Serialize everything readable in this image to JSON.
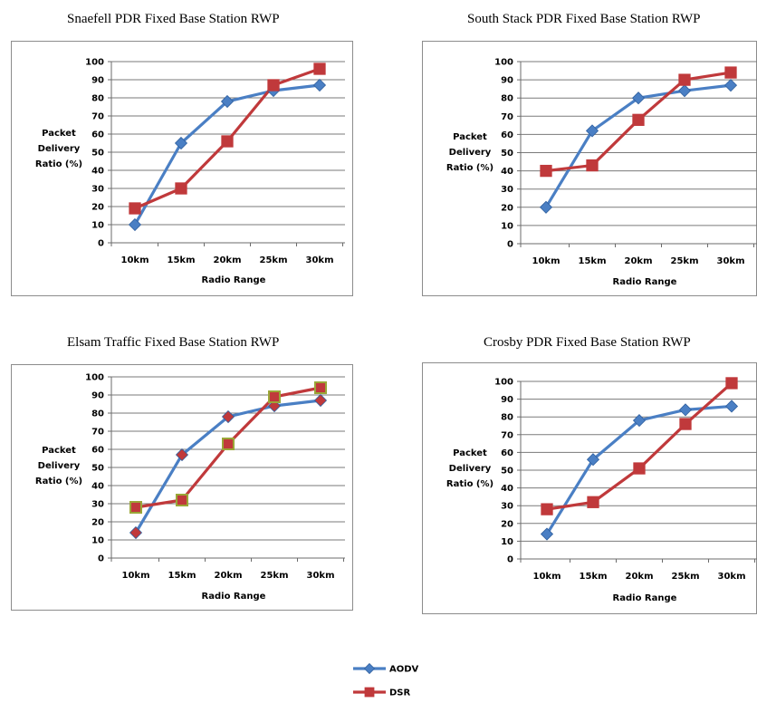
{
  "chart_data": [
    {
      "type": "line",
      "title": "Snaefell PDR Fixed Base Station RWP",
      "xlabel": "Radio Range",
      "ylabel": [
        "Packet",
        "Delivery",
        "Ratio (%)"
      ],
      "categories": [
        "10km",
        "15km",
        "20km",
        "25km",
        "30km"
      ],
      "ylim": [
        0,
        100
      ],
      "yticks": [
        0,
        10,
        20,
        30,
        40,
        50,
        60,
        70,
        80,
        90,
        100
      ],
      "grid": true,
      "series": [
        {
          "name": "AODV",
          "values": [
            10,
            55,
            78,
            84,
            87
          ]
        },
        {
          "name": "DSR",
          "values": [
            19,
            30,
            56,
            87,
            96
          ]
        }
      ]
    },
    {
      "type": "line",
      "title": "South Stack PDR Fixed Base Station RWP",
      "xlabel": "Radio Range",
      "ylabel": [
        "Packet",
        "Delivery",
        "Ratio (%)"
      ],
      "categories": [
        "10km",
        "15km",
        "20km",
        "25km",
        "30km"
      ],
      "ylim": [
        0,
        100
      ],
      "yticks": [
        0,
        10,
        20,
        30,
        40,
        50,
        60,
        70,
        80,
        90,
        100
      ],
      "grid": true,
      "series": [
        {
          "name": "AODV",
          "values": [
            20,
            62,
            80,
            84,
            87
          ]
        },
        {
          "name": "DSR",
          "values": [
            40,
            43,
            68,
            90,
            94
          ]
        }
      ]
    },
    {
      "type": "line",
      "title": "Elsam Traffic Fixed Base Station RWP",
      "xlabel": "Radio Range",
      "ylabel": [
        "Packet",
        "Delivery",
        "Ratio (%)"
      ],
      "categories": [
        "10km",
        "15km",
        "20km",
        "25km",
        "30km"
      ],
      "ylim": [
        0,
        100
      ],
      "yticks": [
        0,
        10,
        20,
        30,
        40,
        50,
        60,
        70,
        80,
        90,
        100
      ],
      "grid": true,
      "series": [
        {
          "name": "AODV",
          "values": [
            14,
            57,
            78,
            84,
            87
          ]
        },
        {
          "name": "DSR",
          "values": [
            28,
            32,
            63,
            89,
            94
          ]
        }
      ]
    },
    {
      "type": "line",
      "title": "Crosby PDR Fixed Base Station RWP",
      "xlabel": "Radio Range",
      "ylabel": [
        "Packet",
        "Delivery",
        "Ratio (%)"
      ],
      "categories": [
        "10km",
        "15km",
        "20km",
        "25km",
        "30km"
      ],
      "ylim": [
        0,
        100
      ],
      "yticks": [
        0,
        10,
        20,
        30,
        40,
        50,
        60,
        70,
        80,
        90,
        100
      ],
      "grid": true,
      "series": [
        {
          "name": "AODV",
          "values": [
            14,
            56,
            78,
            84,
            86
          ]
        },
        {
          "name": "DSR",
          "values": [
            28,
            32,
            51,
            76,
            99
          ]
        }
      ]
    }
  ],
  "legend": {
    "placement": "bottom-center",
    "entries": [
      {
        "name": "AODV",
        "color": "#4a7fc4",
        "marker": "diamond"
      },
      {
        "name": "DSR",
        "color": "#c0393b",
        "marker": "square"
      }
    ]
  },
  "colors": {
    "aodv": "#4a7fc4",
    "dsr": "#c0393b",
    "dsr_elsam_marker_border": "#9aa637"
  }
}
